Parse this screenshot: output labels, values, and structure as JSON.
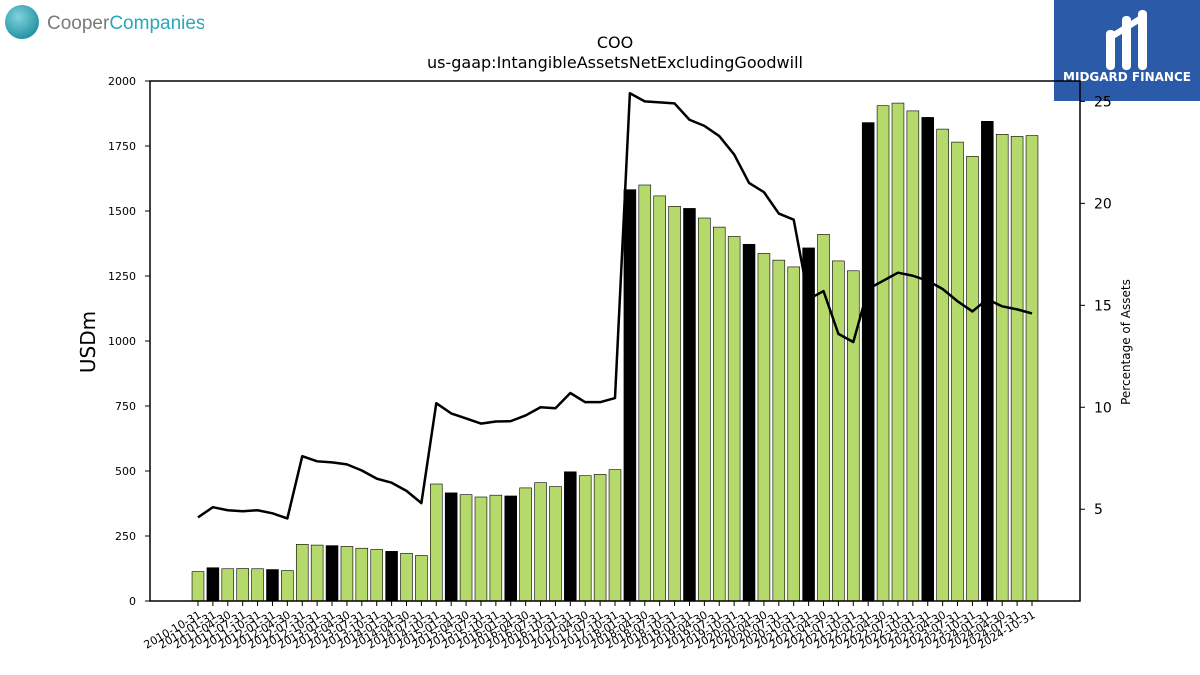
{
  "branding": {
    "left_logo": {
      "word1": "Cooper",
      "word2": "Companies",
      "word1_color": "#7a7a7a",
      "word2_color": "#2aa7b9"
    },
    "right_logo": {
      "text": "MIDGARD FINANCE",
      "background": "#2a5aa8"
    }
  },
  "chart_data": {
    "type": "bar",
    "title": "COO",
    "subtitle": "us-gaap:IntangibleAssetsNetExcludingGoodwill",
    "ylabel": "USDm",
    "y2label": "Percentage of Assets",
    "ylim": [
      0,
      2000
    ],
    "y2lim": [
      0.5,
      26
    ],
    "yticks": [
      0,
      250,
      500,
      750,
      1000,
      1250,
      1500,
      1750,
      2000
    ],
    "y2ticks": [
      5,
      10,
      15,
      20,
      25
    ],
    "grid": false,
    "colors": {
      "bar": "#b5d96b",
      "bar_q4": "#000000",
      "line": "#000000"
    },
    "categories": [
      "2010-10-31",
      "2011-01-31",
      "2011-04-30",
      "2011-07-31",
      "2011-10-31",
      "2012-01-31",
      "2012-04-30",
      "2012-07-31",
      "2012-10-31",
      "2013-01-31",
      "2013-04-30",
      "2013-07-31",
      "2013-10-31",
      "2014-01-31",
      "2014-04-30",
      "2014-07-31",
      "2014-10-31",
      "2015-01-31",
      "2015-04-30",
      "2015-07-31",
      "2015-10-31",
      "2016-01-31",
      "2016-04-30",
      "2016-07-31",
      "2016-10-31",
      "2017-01-31",
      "2017-04-30",
      "2017-07-31",
      "2017-10-31",
      "2018-01-31",
      "2018-04-30",
      "2018-07-31",
      "2018-10-31",
      "2019-01-31",
      "2019-04-30",
      "2019-07-31",
      "2019-10-31",
      "2020-01-31",
      "2020-04-30",
      "2020-07-31",
      "2020-10-31",
      "2021-01-31",
      "2021-04-30",
      "2021-07-31",
      "2021-10-31",
      "2022-01-31",
      "2022-04-30",
      "2022-07-31",
      "2022-10-31",
      "2023-01-31",
      "2023-04-30",
      "2023-07-31",
      "2023-10-31",
      "2024-01-31",
      "2024-04-30",
      "2024-07-31",
      "2024-10-31"
    ],
    "highlight": [
      false,
      true,
      false,
      false,
      false,
      true,
      false,
      false,
      false,
      true,
      false,
      false,
      false,
      true,
      false,
      false,
      false,
      true,
      false,
      false,
      false,
      true,
      false,
      false,
      false,
      true,
      false,
      false,
      false,
      true,
      false,
      false,
      false,
      true,
      false,
      false,
      false,
      true,
      false,
      false,
      false,
      true,
      false,
      false,
      false,
      true,
      false,
      false,
      false,
      true,
      false,
      false,
      false,
      true,
      false,
      false,
      false
    ],
    "series": [
      {
        "type": "bar",
        "values": [
          113,
          128,
          124,
          125,
          124,
          121,
          117,
          218,
          215,
          213,
          210,
          203,
          198,
          191,
          183,
          175,
          450,
          416,
          409,
          400,
          407,
          404,
          435,
          455,
          440,
          497,
          482,
          487,
          505,
          1582,
          1600,
          1558,
          1518,
          1510,
          1473,
          1438,
          1402,
          1372,
          1337,
          1311,
          1285,
          1358,
          1410,
          1308,
          1270,
          1840,
          1905,
          1915,
          1885,
          1860,
          1815,
          1765,
          1710,
          1845,
          1795,
          1787,
          1790
        ]
      },
      {
        "type": "line",
        "axis": "right",
        "values": [
          4.6,
          5.1,
          4.95,
          4.9,
          4.95,
          4.8,
          4.55,
          7.6,
          7.35,
          7.3,
          7.2,
          6.9,
          6.5,
          6.3,
          5.9,
          5.3,
          10.2,
          9.7,
          9.45,
          9.2,
          9.3,
          9.32,
          9.6,
          10.0,
          9.95,
          10.7,
          10.25,
          10.25,
          10.45,
          25.4,
          25.0,
          24.95,
          24.9,
          24.1,
          23.8,
          23.3,
          22.4,
          21.0,
          20.55,
          19.5,
          19.2,
          15.3,
          15.7,
          13.6,
          13.2,
          15.8,
          16.2,
          16.6,
          16.45,
          16.2,
          15.8,
          15.2,
          14.7,
          15.3,
          14.95,
          14.8,
          14.6
        ]
      }
    ]
  }
}
